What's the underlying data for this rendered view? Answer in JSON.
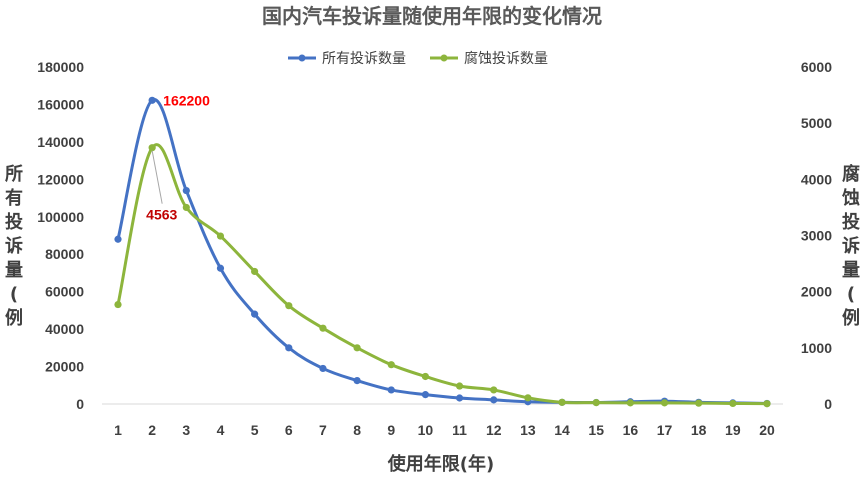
{
  "chart_data": {
    "type": "line",
    "title": "国内汽车投诉量随使用年限的变化情况",
    "xlabel": "使用年限(年)",
    "ylabel_left": "所有投诉量(例",
    "ylabel_right": "腐蚀投诉量(例",
    "x": [
      1,
      2,
      3,
      4,
      5,
      6,
      7,
      8,
      9,
      10,
      11,
      12,
      13,
      14,
      15,
      16,
      17,
      18,
      19,
      20
    ],
    "x_tick_labels": [
      "1",
      "2",
      "3",
      "4",
      "5",
      "6",
      "7",
      "8",
      "9",
      "10",
      "11",
      "12",
      "13",
      "14",
      "15",
      "16",
      "17",
      "18",
      "19",
      "20"
    ],
    "ylim_left": [
      0,
      180000
    ],
    "yticks_left": [
      "0",
      "20000",
      "40000",
      "60000",
      "80000",
      "100000",
      "120000",
      "140000",
      "160000",
      "180000"
    ],
    "ylim_right": [
      0,
      6000
    ],
    "yticks_right": [
      "0",
      "1000",
      "2000",
      "3000",
      "4000",
      "5000",
      "6000"
    ],
    "grid": false,
    "legend_position": "top",
    "series": [
      {
        "name": "所有投诉数量",
        "axis": "left",
        "color": "#4472C4",
        "values": [
          88000,
          162200,
          114000,
          72500,
          48000,
          30000,
          19000,
          12500,
          7500,
          5000,
          3200,
          2200,
          1200,
          900,
          800,
          1200,
          1500,
          900,
          600,
          300
        ]
      },
      {
        "name": "腐蚀投诉数量",
        "axis": "right",
        "color": "#8DB53C",
        "values": [
          1770,
          4563,
          3500,
          2990,
          2360,
          1750,
          1350,
          1000,
          700,
          490,
          320,
          250,
          110,
          30,
          25,
          20,
          20,
          15,
          10,
          5
        ]
      }
    ],
    "annotations": [
      {
        "text": "162200",
        "series": 0,
        "index": 1,
        "color": "#FF0000"
      },
      {
        "text": "4563",
        "series": 1,
        "index": 1,
        "color": "#C00000"
      }
    ]
  }
}
